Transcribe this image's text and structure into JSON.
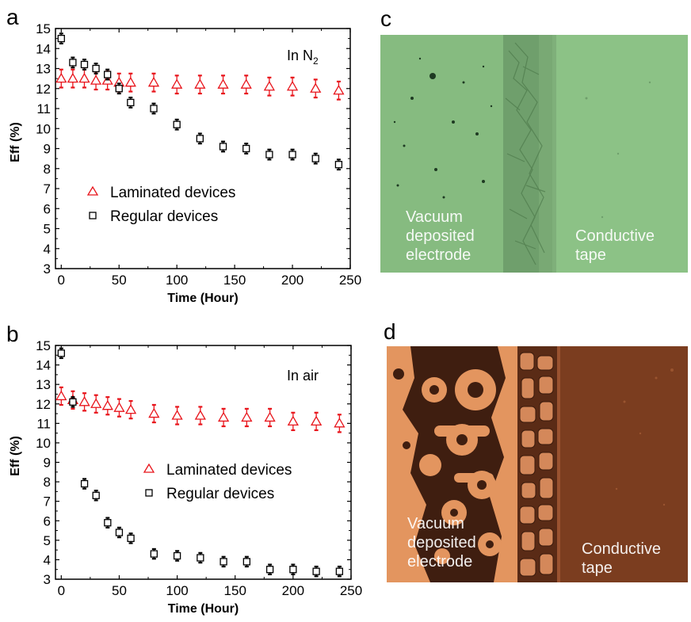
{
  "panels": {
    "a": {
      "letter": "a"
    },
    "b": {
      "letter": "b"
    },
    "c": {
      "letter": "c",
      "left_label_lines": [
        "Vacuum",
        "deposited",
        "electrode"
      ],
      "right_label_lines": [
        "Conductive",
        "tape"
      ]
    },
    "d": {
      "letter": "d",
      "left_label_lines": [
        "Vacuum",
        "deposited",
        "electrode"
      ],
      "right_label_lines": [
        "Conductive",
        "tape"
      ]
    }
  },
  "colors": {
    "laminated": "#e8141b",
    "regular": "#000000",
    "photo_c_bg": "#8fc587",
    "photo_d_bg": "#7a3a1c",
    "photo_d_light": "#e89a68"
  },
  "chart_data": [
    {
      "type": "scatter",
      "panel": "a",
      "annotation": "In N",
      "annotation_sub": "2",
      "xlabel": "Time (Hour)",
      "ylabel": "Eff (%)",
      "xlim": [
        -5,
        250
      ],
      "ylim": [
        3,
        15
      ],
      "xticks": [
        0,
        50,
        100,
        150,
        200,
        250
      ],
      "yticks": [
        3,
        4,
        5,
        6,
        7,
        8,
        9,
        10,
        11,
        12,
        13,
        14,
        15
      ],
      "legend_position": "lower-left",
      "series": [
        {
          "name": "Laminated devices",
          "marker": "triangle",
          "x": [
            0,
            10,
            20,
            30,
            40,
            50,
            60,
            80,
            100,
            120,
            140,
            160,
            180,
            200,
            220,
            240
          ],
          "y": [
            12.5,
            12.5,
            12.5,
            12.4,
            12.4,
            12.3,
            12.3,
            12.3,
            12.2,
            12.2,
            12.2,
            12.2,
            12.1,
            12.1,
            12.0,
            11.9
          ],
          "err": [
            0.45,
            0.45,
            0.45,
            0.45,
            0.45,
            0.45,
            0.45,
            0.45,
            0.45,
            0.45,
            0.45,
            0.45,
            0.45,
            0.45,
            0.45,
            0.45
          ]
        },
        {
          "name": "Regular devices",
          "marker": "square",
          "x": [
            0,
            10,
            20,
            30,
            40,
            50,
            60,
            80,
            100,
            120,
            140,
            160,
            180,
            200,
            220,
            240
          ],
          "y": [
            14.5,
            13.3,
            13.2,
            13.0,
            12.7,
            12.0,
            11.3,
            11.0,
            10.2,
            9.5,
            9.1,
            9.0,
            8.7,
            8.7,
            8.5,
            8.2
          ],
          "err": [
            0.25,
            0.25,
            0.25,
            0.25,
            0.25,
            0.25,
            0.25,
            0.25,
            0.25,
            0.25,
            0.25,
            0.25,
            0.25,
            0.25,
            0.25,
            0.25
          ]
        }
      ]
    },
    {
      "type": "scatter",
      "panel": "b",
      "annotation": "In air",
      "annotation_sub": "",
      "xlabel": "Time (Hour)",
      "ylabel": "Eff (%)",
      "xlim": [
        -5,
        250
      ],
      "ylim": [
        3,
        15
      ],
      "xticks": [
        0,
        50,
        100,
        150,
        200,
        250
      ],
      "yticks": [
        3,
        4,
        5,
        6,
        7,
        8,
        9,
        10,
        11,
        12,
        13,
        14,
        15
      ],
      "legend_position": "center-right",
      "series": [
        {
          "name": "Laminated devices",
          "marker": "triangle",
          "x": [
            0,
            10,
            20,
            30,
            40,
            50,
            60,
            80,
            100,
            120,
            140,
            160,
            180,
            200,
            220,
            240
          ],
          "y": [
            12.4,
            12.2,
            12.1,
            12.0,
            11.9,
            11.8,
            11.7,
            11.5,
            11.4,
            11.4,
            11.3,
            11.3,
            11.3,
            11.1,
            11.1,
            11.0
          ],
          "err": [
            0.45,
            0.45,
            0.45,
            0.45,
            0.45,
            0.45,
            0.45,
            0.45,
            0.45,
            0.45,
            0.45,
            0.45,
            0.45,
            0.45,
            0.45,
            0.45
          ]
        },
        {
          "name": "Regular devices",
          "marker": "square",
          "x": [
            0,
            10,
            20,
            30,
            40,
            50,
            60,
            80,
            100,
            120,
            140,
            160,
            180,
            200,
            220,
            240
          ],
          "y": [
            14.6,
            12.1,
            7.9,
            7.3,
            5.9,
            5.4,
            5.1,
            4.3,
            4.2,
            4.1,
            3.9,
            3.9,
            3.5,
            3.5,
            3.4,
            3.4
          ],
          "err": [
            0.25,
            0.25,
            0.25,
            0.25,
            0.25,
            0.25,
            0.25,
            0.25,
            0.25,
            0.25,
            0.25,
            0.25,
            0.25,
            0.25,
            0.25,
            0.25
          ]
        }
      ]
    }
  ]
}
